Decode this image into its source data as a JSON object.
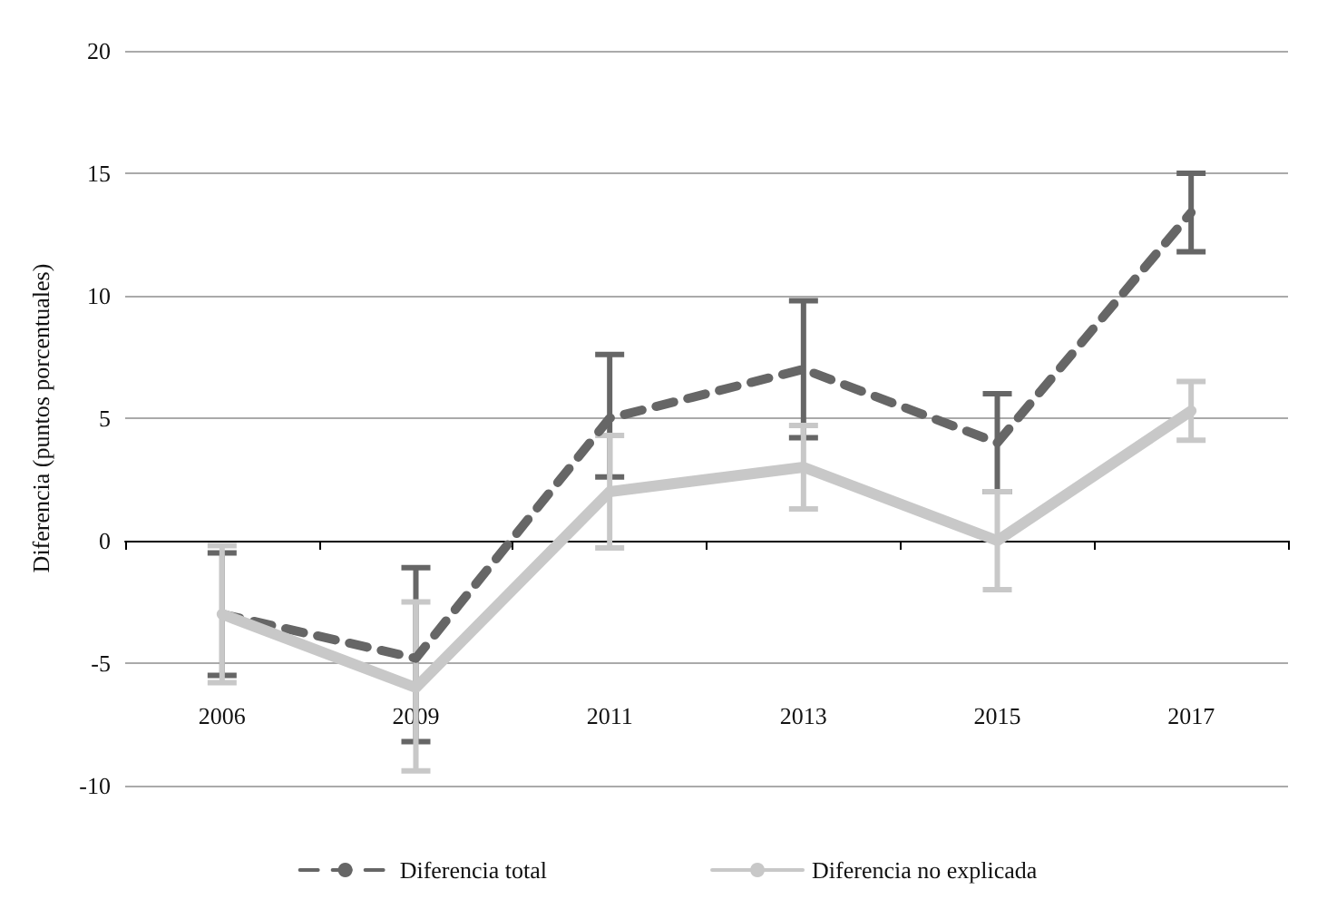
{
  "chart_data": {
    "type": "line",
    "ylabel": "Diferencia (puntos porcentuales)",
    "categories": [
      "2006",
      "2009",
      "2011",
      "2013",
      "2015",
      "2017"
    ],
    "series": [
      {
        "name": "Diferencia total",
        "color": "#666666",
        "line_style": "dashed",
        "values": [
          -3,
          -4.8,
          5,
          7,
          4,
          13.4
        ],
        "errors": [
          [
            -5.5,
            -0.5
          ],
          [
            -8.2,
            -1.1
          ],
          [
            2.6,
            7.6
          ],
          [
            4.2,
            9.8
          ],
          [
            2,
            6
          ],
          [
            11.8,
            15
          ]
        ]
      },
      {
        "name": "Diferencia no explicada",
        "color": "#c8c8c8",
        "line_style": "solid",
        "values": [
          -3,
          -6,
          2,
          3,
          0,
          5.3
        ],
        "errors": [
          [
            -5.8,
            -0.2
          ],
          [
            -9.4,
            -2.5
          ],
          [
            -0.3,
            4.3
          ],
          [
            1.3,
            4.7
          ],
          [
            -2,
            2
          ],
          [
            4.1,
            6.5
          ]
        ]
      }
    ],
    "ylim": [
      -10,
      20
    ],
    "yticks": [
      -10,
      -5,
      0,
      5,
      10,
      15,
      20
    ],
    "grid": "y",
    "legend": "bottom",
    "marker": "none"
  }
}
